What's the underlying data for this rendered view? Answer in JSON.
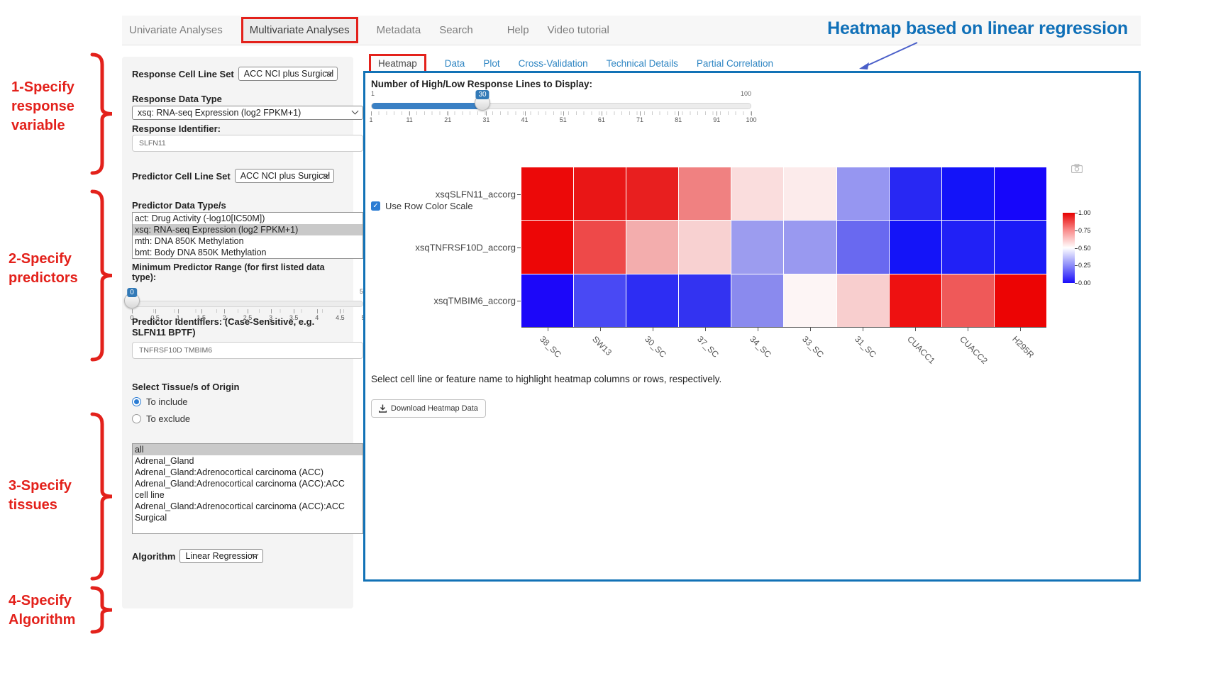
{
  "nav": {
    "items": [
      {
        "label": "Univariate Analyses",
        "active": false
      },
      {
        "label": "Multivariate Analyses",
        "active": true
      },
      {
        "label": "Metadata",
        "active": false
      },
      {
        "label": "Search",
        "active": false
      },
      {
        "label": "Help",
        "active": false,
        "gap_left": true
      },
      {
        "label": "Video tutorial",
        "active": false
      }
    ]
  },
  "annotations": {
    "heading": "Heatmap based on linear regression",
    "heading_color": "#1070b8",
    "step_color": "#e3211b",
    "steps": [
      {
        "lines": [
          "1-Specify",
          "response",
          "variable"
        ]
      },
      {
        "lines": [
          "2-Specify",
          "predictors"
        ]
      },
      {
        "lines": [
          "3-Specify",
          "tissues"
        ]
      },
      {
        "lines": [
          "4-Specify",
          "Algorithm"
        ]
      }
    ]
  },
  "sidebar": {
    "response_cell_line_set": {
      "label": "Response Cell Line Set",
      "value": "ACC NCI plus Surgical"
    },
    "response_data_type": {
      "label": "Response Data Type",
      "value": "xsq: RNA-seq Expression (log2 FPKM+1)"
    },
    "response_identifier": {
      "label": "Response Identifier:",
      "value": "SLFN11"
    },
    "predictor_cell_line_set": {
      "label": "Predictor Cell Line Set",
      "value": "ACC NCI plus Surgical"
    },
    "predictor_data_types": {
      "label": "Predictor Data Type/s",
      "options": [
        {
          "label": "act: Drug Activity (-log10[IC50M])",
          "selected": false
        },
        {
          "label": "xsq: RNA-seq Expression (log2 FPKM+1)",
          "selected": true
        },
        {
          "label": "mth: DNA 850K Methylation",
          "selected": false
        },
        {
          "label": "bmt: Body DNA 850K Methylation",
          "selected": false
        }
      ]
    },
    "min_predictor_range": {
      "label": "Minimum Predictor Range (for first listed data type):",
      "value": "0",
      "min": 0,
      "max": 5,
      "ticks": [
        "0",
        "0.5",
        "1",
        "1.5",
        "2",
        "2.5",
        "3",
        "3.5",
        "4",
        "4.5",
        "5"
      ]
    },
    "predictor_identifiers": {
      "label": "Predictor Identifiers: (Case-Sensitive, e.g. SLFN11 BPTF)",
      "value": "TNFRSF10D TMBIM6"
    },
    "tissue_origin": {
      "label": "Select Tissue/s of Origin",
      "radios": [
        {
          "label": "To include",
          "selected": true
        },
        {
          "label": "To exclude",
          "selected": false
        }
      ],
      "options": [
        {
          "label": "all",
          "selected": true
        },
        {
          "label": "Adrenal_Gland",
          "selected": false
        },
        {
          "label": "Adrenal_Gland:Adrenocortical carcinoma (ACC)",
          "selected": false
        },
        {
          "label": "Adrenal_Gland:Adrenocortical carcinoma (ACC):ACC cell line",
          "selected": false
        },
        {
          "label": "Adrenal_Gland:Adrenocortical carcinoma (ACC):ACC Surgical",
          "selected": false
        }
      ]
    },
    "algorithm": {
      "label": "Algorithm",
      "value": "Linear Regression"
    }
  },
  "main": {
    "tabs": [
      {
        "label": "Heatmap",
        "active": true
      },
      {
        "label": "Data",
        "active": false
      },
      {
        "label": "Plot",
        "active": false
      },
      {
        "label": "Cross-Validation",
        "active": false
      },
      {
        "label": "Technical Details",
        "active": false
      },
      {
        "label": "Partial Correlation",
        "active": false
      }
    ],
    "panel_border_color": "#1272b6",
    "lines_slider": {
      "label": "Number of High/Low Response Lines to Display:",
      "value": "30",
      "min": 1,
      "max": 100,
      "min_label": "1",
      "max_label": "100",
      "ticks": [
        "1",
        "11",
        "21",
        "31",
        "41",
        "51",
        "61",
        "71",
        "81",
        "91",
        "100"
      ]
    },
    "row_color_checkbox": {
      "label": "Use Row Color Scale",
      "checked": true
    },
    "hint": "Select cell line or feature name to highlight heatmap columns or rows, respectively.",
    "download_button": "Download Heatmap Data",
    "camera_icon": "camera-modebar-icon"
  },
  "chart_data": {
    "type": "heatmap",
    "rows": [
      "xsqSLFN11_accorg",
      "xsqTNFRSF10D_accorg",
      "xsqTMBIM6_accorg"
    ],
    "columns": [
      "38_SC",
      "SW13",
      "30_SC",
      "37_SC",
      "34_SC",
      "33_SC",
      "31_SC",
      "CUACC1",
      "CUACC2",
      "H295R"
    ],
    "values": [
      [
        0.98,
        0.96,
        0.95,
        0.78,
        0.56,
        0.53,
        0.3,
        0.06,
        0.02,
        0.01
      ],
      [
        0.99,
        0.84,
        0.67,
        0.58,
        0.32,
        0.31,
        0.21,
        0.03,
        0.05,
        0.04
      ],
      [
        0.02,
        0.18,
        0.09,
        0.1,
        0.28,
        0.49,
        0.58,
        0.97,
        0.81,
        0.99
      ]
    ],
    "cell_colors": [
      [
        "#ec0909",
        "#e91616",
        "#e81f1f",
        "#f08181",
        "#fadddd",
        "#fcebeb",
        "#9696f1",
        "#2828f3",
        "#1313f9",
        "#1606fa"
      ],
      [
        "#ed0606",
        "#ee4949",
        "#f3adad",
        "#f8d1d1",
        "#9c9cef",
        "#9999f0",
        "#6969f0",
        "#1414f8",
        "#2121f6",
        "#1b1bf7"
      ],
      [
        "#1c07f9",
        "#4949f4",
        "#2d2df3",
        "#3333f1",
        "#8a8aee",
        "#fdf5f5",
        "#f8cece",
        "#ee1111",
        "#ef5959",
        "#ec0404"
      ]
    ],
    "colorbar": {
      "ticks": [
        "1.00",
        "0.75",
        "0.50",
        "0.25",
        "0.00"
      ],
      "high_color": "#e60000",
      "mid_color": "#ffffff",
      "low_color": "#1a0dfa"
    },
    "legend_position": "right",
    "xlabel": "",
    "ylabel": ""
  }
}
